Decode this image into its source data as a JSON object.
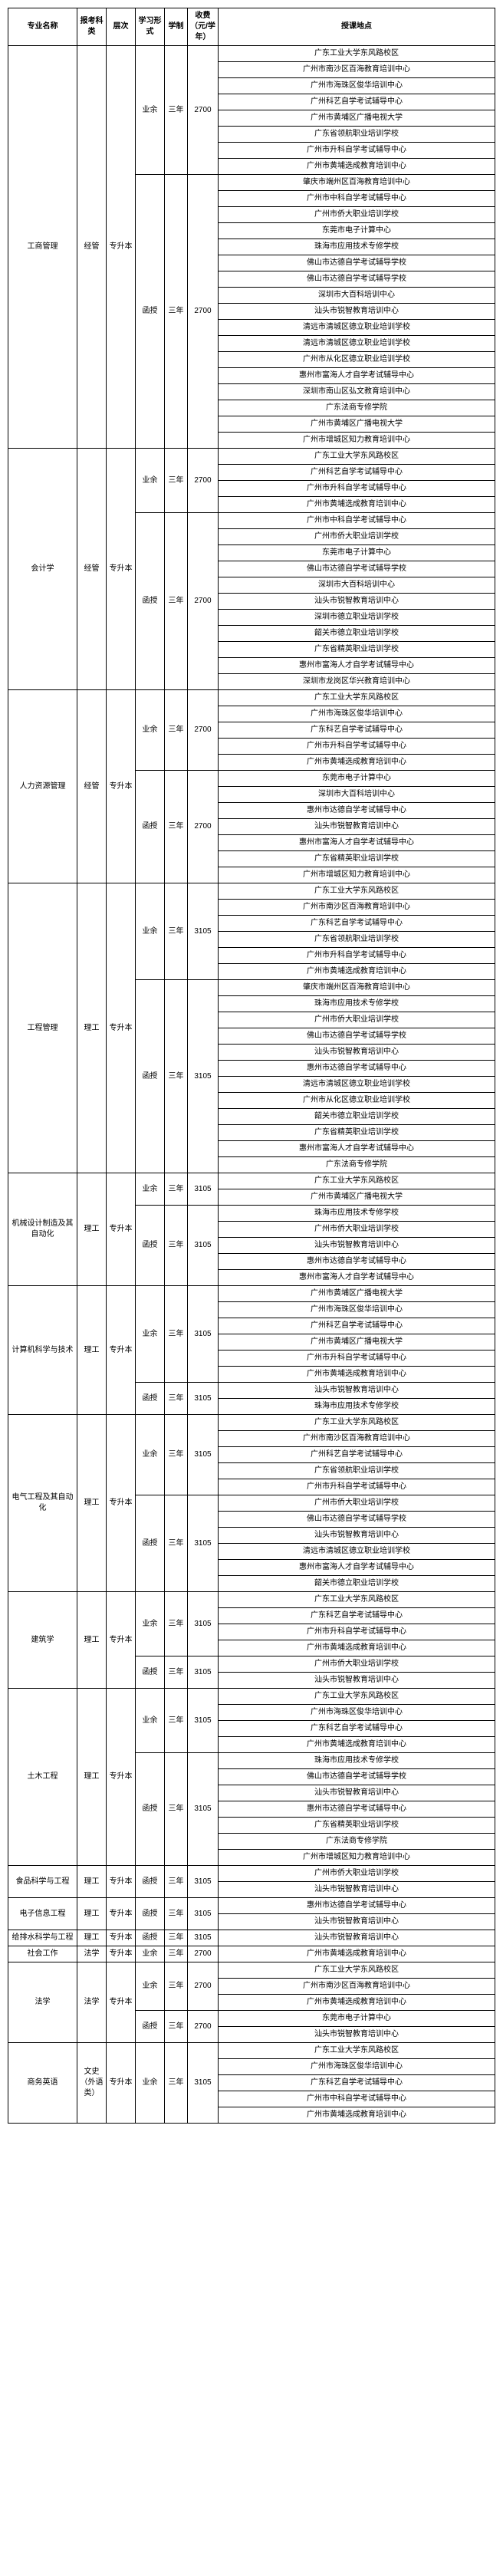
{
  "headers": [
    "专业名称",
    "报考科类",
    "层次",
    "学习形式",
    "学制",
    "收费（元/学年）",
    "授课地点"
  ],
  "colors": {
    "border": "#000000",
    "bg": "#ffffff",
    "text": "#000000"
  },
  "fontsize": 10,
  "majors": [
    {
      "name": "工商管理",
      "category": "经管",
      "level": "专升本",
      "groups": [
        {
          "form": "业余",
          "period": "三年",
          "fee": "2700",
          "locs": [
            "广东工业大学东风路校区",
            "广州市南沙区百海教育培训中心",
            "广州市海珠区俊华培训中心",
            "广州科艺自学考试辅导中心",
            "广州市黄埔区广播电视大学",
            "广东省领航职业培训学校",
            "广州市升科自学考试辅导中心",
            "广州市黄埔选成教育培训中心"
          ]
        },
        {
          "form": "函授",
          "period": "三年",
          "fee": "2700",
          "locs": [
            "肇庆市端州区百海教育培训中心",
            "广州市中科自学考试辅导中心",
            "广州市侨大职业培训学校",
            "东莞市电子计算中心",
            "珠海市应用技术专修学校",
            "佛山市达德自学考试辅导学校",
            "佛山市达德自学考试辅导学校",
            "深圳市大百科培训中心",
            "汕头市锐智教育培训中心",
            "清远市清城区德立职业培训学校",
            "清远市清城区德立职业培训学校",
            "广州市从化区德立职业培训学校",
            "惠州市富海人才自学考试辅导中心",
            "深圳市南山区弘文教育培训中心",
            "广东法商专修学院",
            "广州市黄埔区广播电视大学",
            "广州市增城区知力教育培训中心"
          ]
        }
      ]
    },
    {
      "name": "会计学",
      "category": "经管",
      "level": "专升本",
      "groups": [
        {
          "form": "业余",
          "period": "三年",
          "fee": "2700",
          "locs": [
            "广东工业大学东风路校区",
            "广州科艺自学考试辅导中心",
            "广州市升科自学考试辅导中心",
            "广州市黄埔选成教育培训中心"
          ]
        },
        {
          "form": "函授",
          "period": "三年",
          "fee": "2700",
          "locs": [
            "广州市中科自学考试辅导中心",
            "广州市侨大职业培训学校",
            "东莞市电子计算中心",
            "佛山市达德自学考试辅导学校",
            "深圳市大百科培训中心",
            "汕头市锐智教育培训中心",
            "深圳市德立职业培训学校",
            "韶关市德立职业培训学校",
            "广东省精英职业培训学校",
            "惠州市富海人才自学考试辅导中心",
            "深圳市龙岗区华兴教育培训中心"
          ]
        }
      ]
    },
    {
      "name": "人力资源管理",
      "category": "经管",
      "level": "专升本",
      "groups": [
        {
          "form": "业余",
          "period": "三年",
          "fee": "2700",
          "locs": [
            "广东工业大学东风路校区",
            "广州市海珠区俊华培训中心",
            "广东科艺自学考试辅导中心",
            "广州市升科自学考试辅导中心",
            "广州市黄埔选成教育培训中心"
          ]
        },
        {
          "form": "函授",
          "period": "三年",
          "fee": "2700",
          "locs": [
            "东莞市电子计算中心",
            "深圳市大百科培训中心",
            "惠州市达德自学考试辅导中心",
            "汕头市锐智教育培训中心",
            "惠州市富海人才自学考试辅导中心",
            "广东省精英职业培训学校",
            "广州市增城区知力教育培训中心"
          ]
        }
      ]
    },
    {
      "name": "工程管理",
      "category": "理工",
      "level": "专升本",
      "groups": [
        {
          "form": "业余",
          "period": "三年",
          "fee": "3105",
          "locs": [
            "广东工业大学东风路校区",
            "广州市南沙区百海教育培训中心",
            "广东科艺自学考试辅导中心",
            "广东省领航职业培训学校",
            "广州市升科自学考试辅导中心",
            "广州市黄埔选成教育培训中心"
          ]
        },
        {
          "form": "函授",
          "period": "三年",
          "fee": "3105",
          "locs": [
            "肇庆市端州区百海教育培训中心",
            "珠海市应用技术专修学校",
            "广州市侨大职业培训学校",
            "佛山市达德自学考试辅导学校",
            "汕头市锐智教育培训中心",
            "惠州市达德自学考试辅导中心",
            "清远市清城区德立职业培训学校",
            "广州市从化区德立职业培训学校",
            "韶关市德立职业培训学校",
            "广东省精英职业培训学校",
            "惠州市富海人才自学考试辅导中心",
            "广东法商专修学院"
          ]
        }
      ]
    },
    {
      "name": "机械设计制造及其自动化",
      "category": "理工",
      "level": "专升本",
      "groups": [
        {
          "form": "业余",
          "period": "三年",
          "fee": "3105",
          "locs": [
            "广东工业大学东风路校区",
            "广州市黄埔区广播电视大学"
          ]
        },
        {
          "form": "函授",
          "period": "三年",
          "fee": "3105",
          "locs": [
            "珠海市应用技术专修学校",
            "广州市侨大职业培训学校",
            "汕头市锐智教育培训中心",
            "惠州市达德自学考试辅导中心",
            "惠州市富海人才自学考试辅导中心"
          ]
        }
      ]
    },
    {
      "name": "计算机科学与技术",
      "category": "理工",
      "level": "专升本",
      "groups": [
        {
          "form": "业余",
          "period": "三年",
          "fee": "3105",
          "locs": [
            "广州市黄埔区广播电视大学",
            "广州市海珠区俊华培训中心",
            "广州科艺自学考试辅导中心",
            "广州市黄埔区广播电视大学",
            "广州市升科自学考试辅导中心",
            "广州市黄埔选成教育培训中心"
          ]
        },
        {
          "form": "函授",
          "period": "三年",
          "fee": "3105",
          "locs": [
            "汕头市锐智教育培训中心",
            "珠海市应用技术专修学校"
          ]
        }
      ]
    },
    {
      "name": "电气工程及其自动化",
      "category": "理工",
      "level": "专升本",
      "groups": [
        {
          "form": "业余",
          "period": "三年",
          "fee": "3105",
          "locs": [
            "广东工业大学东风路校区",
            "广州市南沙区百海教育培训中心",
            "广州科艺自学考试辅导中心",
            "广东省领航职业培训学校",
            "广州市升科自学考试辅导中心"
          ]
        },
        {
          "form": "函授",
          "period": "三年",
          "fee": "3105",
          "locs": [
            "广州市侨大职业培训学校",
            "佛山市达德自学考试辅导学校",
            "汕头市锐智教育培训中心",
            "清远市清城区德立职业培训学校",
            "惠州市富海人才自学考试辅导中心",
            "韶关市德立职业培训学校"
          ]
        }
      ]
    },
    {
      "name": "建筑学",
      "category": "理工",
      "level": "专升本",
      "groups": [
        {
          "form": "业余",
          "period": "三年",
          "fee": "3105",
          "locs": [
            "广东工业大学东风路校区",
            "广东科艺自学考试辅导中心",
            "广州市升科自学考试辅导中心",
            "广州市黄埔选成教育培训中心"
          ]
        },
        {
          "form": "函授",
          "period": "三年",
          "fee": "3105",
          "locs": [
            "广州市侨大职业培训学校",
            "汕头市锐智教育培训中心"
          ]
        }
      ]
    },
    {
      "name": "土木工程",
      "category": "理工",
      "level": "专升本",
      "groups": [
        {
          "form": "业余",
          "period": "三年",
          "fee": "3105",
          "locs": [
            "广东工业大学东风路校区",
            "广州市海珠区俊华培训中心",
            "广东科艺自学考试辅导中心",
            "广州市黄埔选成教育培训中心"
          ]
        },
        {
          "form": "函授",
          "period": "三年",
          "fee": "3105",
          "locs": [
            "珠海市应用技术专修学校",
            "佛山市达德自学考试辅导学校",
            "汕头市锐智教育培训中心",
            "惠州市达德自学考试辅导中心",
            "广东省精英职业培训学校",
            "广东法商专修学院",
            "广州市增城区知力教育培训中心"
          ]
        }
      ]
    },
    {
      "name": "食品科学与工程",
      "category": "理工",
      "level": "专升本",
      "groups": [
        {
          "form": "函授",
          "period": "三年",
          "fee": "3105",
          "locs": [
            "广州市侨大职业培训学校",
            "汕头市锐智教育培训中心"
          ]
        }
      ]
    },
    {
      "name": "电子信息工程",
      "category": "理工",
      "level": "专升本",
      "groups": [
        {
          "form": "函授",
          "period": "三年",
          "fee": "3105",
          "locs": [
            "惠州市达德自学考试辅导中心",
            "汕头市锐智教育培训中心"
          ]
        }
      ]
    },
    {
      "name": "给排水科学与工程",
      "category": "理工",
      "level": "专升本",
      "groups": [
        {
          "form": "函授",
          "period": "三年",
          "fee": "3105",
          "locs": [
            "汕头市锐智教育培训中心"
          ]
        }
      ]
    },
    {
      "name": "社会工作",
      "category": "法学",
      "level": "专升本",
      "groups": [
        {
          "form": "业余",
          "period": "三年",
          "fee": "2700",
          "locs": [
            "广州市黄埔选成教育培训中心"
          ]
        }
      ]
    },
    {
      "name": "法学",
      "category": "法学",
      "level": "专升本",
      "groups": [
        {
          "form": "业余",
          "period": "三年",
          "fee": "2700",
          "locs": [
            "广东工业大学东风路校区",
            "广州市南沙区百海教育培训中心",
            "广州市黄埔选成教育培训中心"
          ]
        },
        {
          "form": "函授",
          "period": "三年",
          "fee": "2700",
          "locs": [
            "东莞市电子计算中心",
            "汕头市锐智教育培训中心"
          ]
        }
      ]
    },
    {
      "name": "商务英语",
      "category": "文史（外语类）",
      "level": "专升本",
      "catRows": 4,
      "groups": [
        {
          "form": "业余",
          "period": "三年",
          "fee": "3105",
          "locs": [
            "广东工业大学东风路校区",
            "广州市海珠区俊华培训中心",
            "广东科艺自学考试辅导中心",
            "广州市中科自学考试辅导中心",
            "广州市黄埔选成教育培训中心"
          ]
        }
      ]
    }
  ]
}
